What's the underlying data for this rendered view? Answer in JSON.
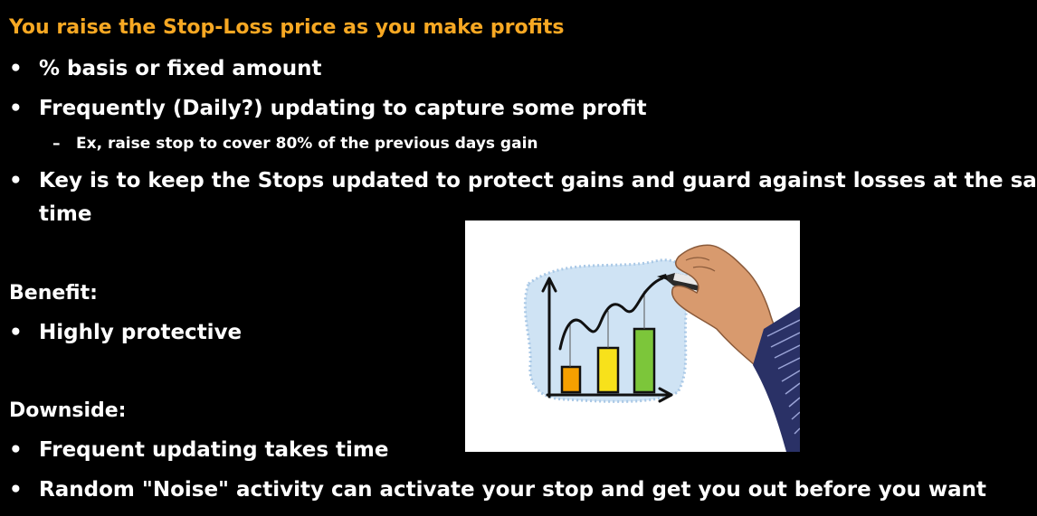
{
  "slide": {
    "title": "You raise the Stop-Loss price as you make profits",
    "title_color": "#f7a823",
    "bullet_symbol": "•",
    "dash_symbol": "–",
    "bullets_top": [
      "% basis or fixed amount",
      "Frequently (Daily?) updating to capture some profit"
    ],
    "sub_bullet": "Ex, raise stop to cover 80% of the previous days gain",
    "key_bullet_line1": "Key is to keep the Stops updated to protect gains and guard against losses at the same",
    "key_bullet_line2": "time",
    "benefit_heading": "Benefit:",
    "benefit_items": [
      "Highly protective"
    ],
    "downside_heading": "Downside:",
    "downside_items": [
      "Frequent updating takes time",
      "Random \"Noise\" activity can activate your stop and get you out before you want"
    ]
  },
  "illustration": {
    "description_icon": "hand-drawing-chart-illustration",
    "bar_colors": [
      "#f5a000",
      "#f7e11b",
      "#7cc63a"
    ],
    "sky_color": "#cfe3f4"
  }
}
